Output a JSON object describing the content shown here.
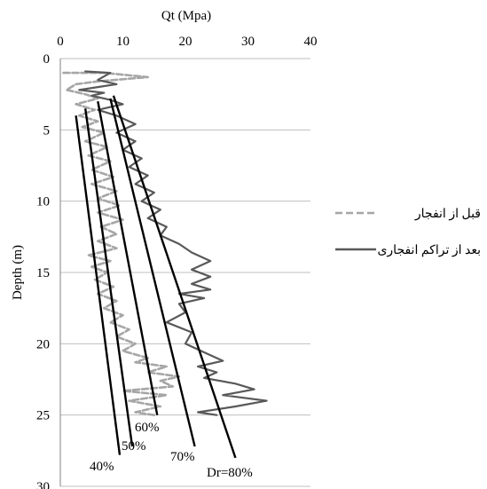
{
  "chart_data": {
    "type": "line",
    "title": "",
    "xlabel": "Qt  (Mpa)",
    "ylabel": "Depth (m)",
    "xlim": [
      0,
      40
    ],
    "ylim": [
      0,
      30
    ],
    "y_inverted": true,
    "x_axis_position": "top",
    "x_ticks": [
      "0",
      "10",
      "20",
      "30",
      "40"
    ],
    "y_ticks": [
      "0",
      "5",
      "10",
      "15",
      "20",
      "25",
      "30"
    ],
    "grid": "horizontal",
    "legend_placement": "right",
    "series": [
      {
        "name": "قبل از انفجار",
        "color": "#a6a6a6",
        "dash": true,
        "points": [
          [
            0.5,
            1
          ],
          [
            7,
            1
          ],
          [
            14,
            1.3
          ],
          [
            6,
            1.6
          ],
          [
            2.5,
            1.8
          ],
          [
            1,
            2.2
          ],
          [
            4,
            2.5
          ],
          [
            6,
            2.8
          ],
          [
            2.5,
            3.2
          ],
          [
            5.5,
            3.6
          ],
          [
            3,
            4
          ],
          [
            6,
            4.4
          ],
          [
            3.5,
            4.8
          ],
          [
            7,
            5.2
          ],
          [
            4,
            5.8
          ],
          [
            7.5,
            6.2
          ],
          [
            4.5,
            6.8
          ],
          [
            8,
            7.2
          ],
          [
            5,
            7.8
          ],
          [
            8.5,
            8.3
          ],
          [
            5,
            8.8
          ],
          [
            9,
            9.3
          ],
          [
            6,
            9.8
          ],
          [
            9.5,
            10.3
          ],
          [
            6,
            10.8
          ],
          [
            10,
            11.3
          ],
          [
            6.5,
            11.8
          ],
          [
            9,
            12.3
          ],
          [
            6,
            12.8
          ],
          [
            9,
            13.3
          ],
          [
            4.5,
            13.8
          ],
          [
            8,
            14.2
          ],
          [
            5,
            14.6
          ],
          [
            7.5,
            15
          ],
          [
            5.5,
            15.5
          ],
          [
            8.5,
            16
          ],
          [
            6,
            16.5
          ],
          [
            9,
            17
          ],
          [
            7,
            17.5
          ],
          [
            10,
            18
          ],
          [
            8,
            18.5
          ],
          [
            11,
            19
          ],
          [
            9,
            19.5
          ],
          [
            12,
            20
          ],
          [
            10,
            20.5
          ],
          [
            14,
            21
          ],
          [
            12,
            21.3
          ],
          [
            17,
            21.6
          ],
          [
            14,
            22
          ],
          [
            19,
            22.3
          ],
          [
            16,
            22.6
          ],
          [
            18,
            23
          ],
          [
            10,
            23.3
          ],
          [
            17,
            23.6
          ],
          [
            11,
            24
          ],
          [
            16,
            24.4
          ],
          [
            12,
            24.8
          ],
          [
            15,
            25
          ]
        ]
      },
      {
        "name": "بعد از تراکم انفجاری",
        "color": "#595959",
        "dash": false,
        "points": [
          [
            4,
            0.9
          ],
          [
            8,
            1
          ],
          [
            6,
            1.5
          ],
          [
            9,
            1.8
          ],
          [
            6,
            2
          ],
          [
            3,
            2.2
          ],
          [
            7,
            2.4
          ],
          [
            5,
            2.6
          ],
          [
            8,
            2.9
          ],
          [
            10,
            3.2
          ],
          [
            6,
            3.6
          ],
          [
            9,
            4
          ],
          [
            12,
            4.6
          ],
          [
            9,
            5.2
          ],
          [
            12,
            5.8
          ],
          [
            10,
            6.4
          ],
          [
            13,
            7
          ],
          [
            11,
            7.6
          ],
          [
            14,
            8.2
          ],
          [
            12,
            8.8
          ],
          [
            15,
            9.4
          ],
          [
            13,
            10
          ],
          [
            16,
            10.6
          ],
          [
            14,
            11.2
          ],
          [
            17,
            11.8
          ],
          [
            16,
            12.4
          ],
          [
            19,
            13
          ],
          [
            21,
            13.6
          ],
          [
            24,
            14.2
          ],
          [
            21,
            14.8
          ],
          [
            24,
            15.3
          ],
          [
            21,
            15.8
          ],
          [
            24,
            16.2
          ],
          [
            19,
            16.5
          ],
          [
            23,
            16.8
          ],
          [
            19,
            17.2
          ],
          [
            20,
            17.8
          ],
          [
            17,
            18.5
          ],
          [
            21,
            19.2
          ],
          [
            20,
            20
          ],
          [
            23,
            20.6
          ],
          [
            26,
            21.2
          ],
          [
            22,
            21.6
          ],
          [
            25,
            22
          ],
          [
            23,
            22.4
          ],
          [
            28,
            22.8
          ],
          [
            31,
            23.2
          ],
          [
            26,
            23.6
          ],
          [
            33,
            24
          ],
          [
            28,
            24.4
          ],
          [
            22,
            24.8
          ],
          [
            25,
            25
          ]
        ]
      }
    ],
    "dr_lines": [
      {
        "label": "40%",
        "x": [
          2.5,
          9.5
        ],
        "y": [
          4,
          27.8
        ]
      },
      {
        "label": "50%",
        "x": [
          4,
          11.5
        ],
        "y": [
          3.5,
          27.2
        ]
      },
      {
        "label": "60%",
        "x": [
          6,
          15.5
        ],
        "y": [
          3,
          25
        ]
      },
      {
        "label": "70%",
        "x": [
          8,
          21.5
        ],
        "y": [
          2.8,
          27.2
        ]
      },
      {
        "label": "Dr=80%",
        "x": [
          8.5,
          28
        ],
        "y": [
          2.6,
          28
        ]
      }
    ]
  }
}
